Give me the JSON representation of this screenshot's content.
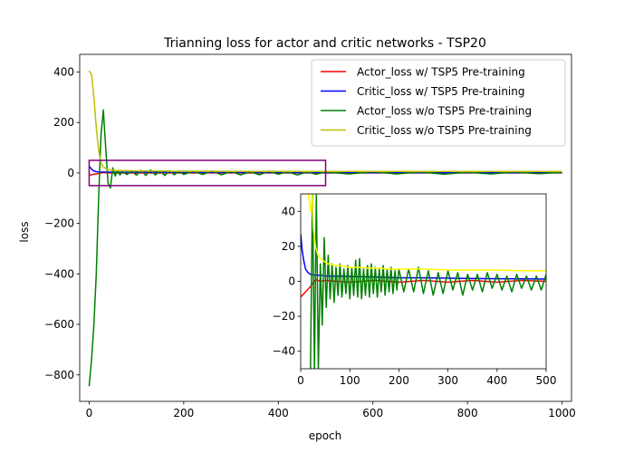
{
  "chart_data": [
    {
      "type": "line",
      "title": "Trianning loss for actor and critic networks - TSP20",
      "xlabel": "epoch",
      "ylabel": "loss",
      "xlim": [
        -20,
        1020
      ],
      "ylim": [
        -905,
        470
      ],
      "xticks": [
        0,
        200,
        400,
        600,
        800,
        1000
      ],
      "yticks": [
        -800,
        -600,
        -400,
        -200,
        0,
        200,
        400
      ],
      "grid": false,
      "legend_position": "top-right",
      "highlight_box": {
        "x": [
          0,
          500
        ],
        "y": [
          -50,
          50
        ],
        "color": "#800080"
      },
      "series": [
        {
          "name": "Actor_loss w/ TSP5 Pre-training",
          "color": "#ff0000",
          "x": [
            0,
            10,
            20,
            30,
            40,
            50,
            100,
            200,
            300,
            400,
            500,
            600,
            700,
            800,
            900,
            1000
          ],
          "y": [
            -9,
            -5,
            -2,
            2,
            0,
            0,
            0,
            0,
            0,
            0,
            0,
            0,
            0,
            0,
            0,
            0
          ]
        },
        {
          "name": "Critic_loss w/ TSP5 Pre-training",
          "color": "#0000ff",
          "x": [
            0,
            5,
            10,
            15,
            20,
            30,
            50,
            100,
            200,
            300,
            400,
            500,
            600,
            700,
            800,
            900,
            1000
          ],
          "y": [
            27,
            15,
            8,
            5,
            4,
            3.5,
            3,
            2.5,
            2,
            1.8,
            1.5,
            1.3,
            1.2,
            1.1,
            1,
            1,
            1
          ]
        },
        {
          "name": "Actor_loss w/o TSP5 Pre-training",
          "color": "#008000",
          "x": [
            0,
            5,
            10,
            15,
            20,
            25,
            30,
            35,
            40,
            45,
            50,
            55,
            60,
            65,
            70,
            80,
            90,
            100,
            110,
            120,
            130,
            140,
            150,
            160,
            170,
            180,
            190,
            200,
            220,
            240,
            260,
            280,
            300,
            320,
            340,
            360,
            380,
            400,
            420,
            440,
            460,
            480,
            500,
            550,
            600,
            650,
            700,
            750,
            800,
            850,
            900,
            950,
            1000
          ],
          "y": [
            -845,
            -740,
            -600,
            -400,
            -100,
            150,
            250,
            100,
            -40,
            -60,
            20,
            -12,
            10,
            -8,
            6,
            -6,
            8,
            -9,
            10,
            -10,
            12,
            -8,
            8,
            -10,
            9,
            -7,
            8,
            -6,
            7,
            -6,
            8,
            -7,
            6,
            -8,
            5,
            -7,
            6,
            -5,
            5,
            -8,
            4,
            -5,
            4,
            -4,
            5,
            -4,
            4,
            -5,
            3,
            -4,
            4,
            -3,
            3
          ]
        },
        {
          "name": "Critic_loss w/o TSP5 Pre-training",
          "color": "#bfbf00",
          "x": [
            0,
            5,
            10,
            15,
            20,
            25,
            30,
            35,
            40,
            45,
            50,
            60,
            70,
            80,
            90,
            100,
            120,
            140,
            160,
            180,
            200,
            250,
            300,
            350,
            400,
            450,
            500,
            600,
            700,
            800,
            900,
            1000
          ],
          "y": [
            405,
            390,
            300,
            180,
            90,
            40,
            25,
            18,
            14,
            12,
            11,
            10,
            9,
            9,
            8.5,
            8,
            8,
            7.5,
            7.5,
            7,
            7,
            7,
            6.5,
            6.5,
            6.5,
            6,
            6,
            6,
            6,
            6,
            6,
            6
          ]
        }
      ]
    },
    {
      "type": "line",
      "title": "",
      "xlabel": "",
      "ylabel": "",
      "xlim": [
        0,
        500
      ],
      "ylim": [
        -50,
        50
      ],
      "xticks": [
        0,
        100,
        200,
        300,
        400,
        500
      ],
      "yticks": [
        -40,
        -20,
        0,
        20,
        40
      ],
      "grid": false,
      "series": [
        {
          "color": "#ff0000",
          "x": [
            0,
            10,
            20,
            30,
            40,
            50,
            100,
            150,
            200,
            250,
            300,
            350,
            400,
            450,
            500
          ],
          "y": [
            -9,
            -6,
            -3,
            1,
            0,
            0.5,
            -0.5,
            0.5,
            -0.5,
            0.5,
            -0.5,
            0.5,
            -0.5,
            0.5,
            0
          ]
        },
        {
          "color": "#0000ff",
          "x": [
            0,
            3,
            6,
            10,
            15,
            20,
            30,
            40,
            50,
            75,
            100,
            150,
            200,
            250,
            300,
            350,
            400,
            450,
            500
          ],
          "y": [
            27,
            18,
            12,
            7,
            5,
            4,
            3.5,
            3.5,
            3,
            3,
            2.8,
            2.5,
            2,
            2,
            1.8,
            1.6,
            1.5,
            1.4,
            1.3
          ]
        },
        {
          "color": "#008000",
          "x": [
            20,
            24,
            28,
            32,
            36,
            40,
            44,
            48,
            52,
            56,
            60,
            64,
            68,
            72,
            76,
            80,
            84,
            88,
            92,
            96,
            100,
            104,
            108,
            112,
            116,
            120,
            124,
            128,
            132,
            136,
            140,
            144,
            148,
            152,
            156,
            160,
            164,
            168,
            172,
            176,
            180,
            184,
            188,
            192,
            196,
            200,
            210,
            220,
            230,
            240,
            250,
            260,
            270,
            280,
            290,
            300,
            310,
            320,
            330,
            340,
            350,
            360,
            370,
            380,
            390,
            400,
            410,
            420,
            430,
            440,
            450,
            460,
            470,
            480,
            490,
            500
          ],
          "y": [
            -50,
            50,
            -50,
            50,
            -50,
            10,
            -25,
            25,
            -15,
            15,
            -10,
            10,
            -12,
            8,
            -8,
            10,
            -9,
            7,
            -7,
            9,
            -10,
            8,
            -8,
            12,
            -9,
            13,
            -10,
            7,
            -8,
            9,
            -9,
            10,
            -7,
            8,
            -9,
            7,
            -6,
            9,
            -8,
            7,
            -6,
            8,
            -7,
            6,
            -5,
            7,
            -6,
            7,
            -6,
            8,
            -7,
            6,
            -8,
            5,
            -7,
            6,
            -5,
            5,
            -8,
            4,
            -5,
            4,
            -6,
            5,
            -4,
            4,
            -5,
            3,
            -6,
            4,
            -4,
            3,
            -5,
            3,
            -5,
            4
          ]
        },
        {
          "color": "#ffff00",
          "x": [
            0,
            10,
            15,
            18,
            20,
            23,
            26,
            30,
            35,
            40,
            45,
            50,
            55,
            60,
            70,
            80,
            90,
            100,
            120,
            140,
            160,
            180,
            200,
            250,
            300,
            350,
            400,
            450,
            500
          ],
          "y": [
            50,
            50,
            50,
            45,
            40,
            50,
            30,
            20,
            15,
            13,
            12,
            11,
            10,
            10,
            9,
            9,
            8.5,
            8,
            8,
            7.5,
            7.5,
            7,
            7,
            7,
            6.5,
            6.5,
            6.5,
            6,
            6
          ]
        }
      ]
    }
  ]
}
